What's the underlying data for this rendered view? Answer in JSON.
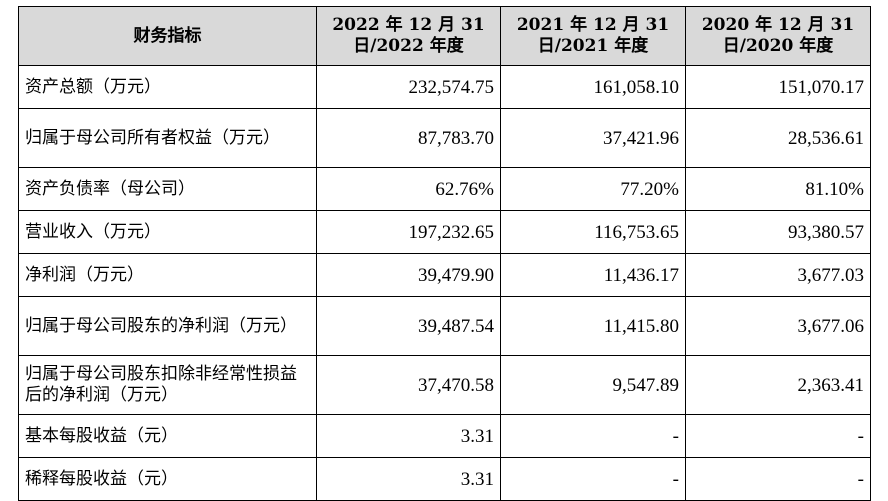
{
  "table": {
    "headers": [
      "财务指标",
      "2022 年 12 月 31 日/2022 年度",
      "2021 年 12 月 31 日/2021 年度",
      "2020 年 12 月 31 日/2020 年度"
    ],
    "rows": [
      {
        "label": "资产总额（万元）",
        "v2022": "232,574.75",
        "v2021": "161,058.10",
        "v2020": "151,070.17"
      },
      {
        "label": "归属于母公司所有者权益（万元）",
        "v2022": "87,783.70",
        "v2021": "37,421.96",
        "v2020": "28,536.61"
      },
      {
        "label": "资产负债率（母公司）",
        "v2022": "62.76%",
        "v2021": "77.20%",
        "v2020": "81.10%"
      },
      {
        "label": "营业收入（万元）",
        "v2022": "197,232.65",
        "v2021": "116,753.65",
        "v2020": "93,380.57"
      },
      {
        "label": "净利润（万元）",
        "v2022": "39,479.90",
        "v2021": "11,436.17",
        "v2020": "3,677.03"
      },
      {
        "label": "归属于母公司股东的净利润（万元）",
        "v2022": "39,487.54",
        "v2021": "11,415.80",
        "v2020": "3,677.06"
      },
      {
        "label": "归属于母公司股东扣除非经常性损益后的净利润（万元）",
        "v2022": "37,470.58",
        "v2021": "9,547.89",
        "v2020": "2,363.41"
      },
      {
        "label": "基本每股收益（元）",
        "v2022": "3.31",
        "v2021": "-",
        "v2020": "-"
      },
      {
        "label": "稀释每股收益（元）",
        "v2022": "3.31",
        "v2021": "-",
        "v2020": "-"
      }
    ]
  }
}
